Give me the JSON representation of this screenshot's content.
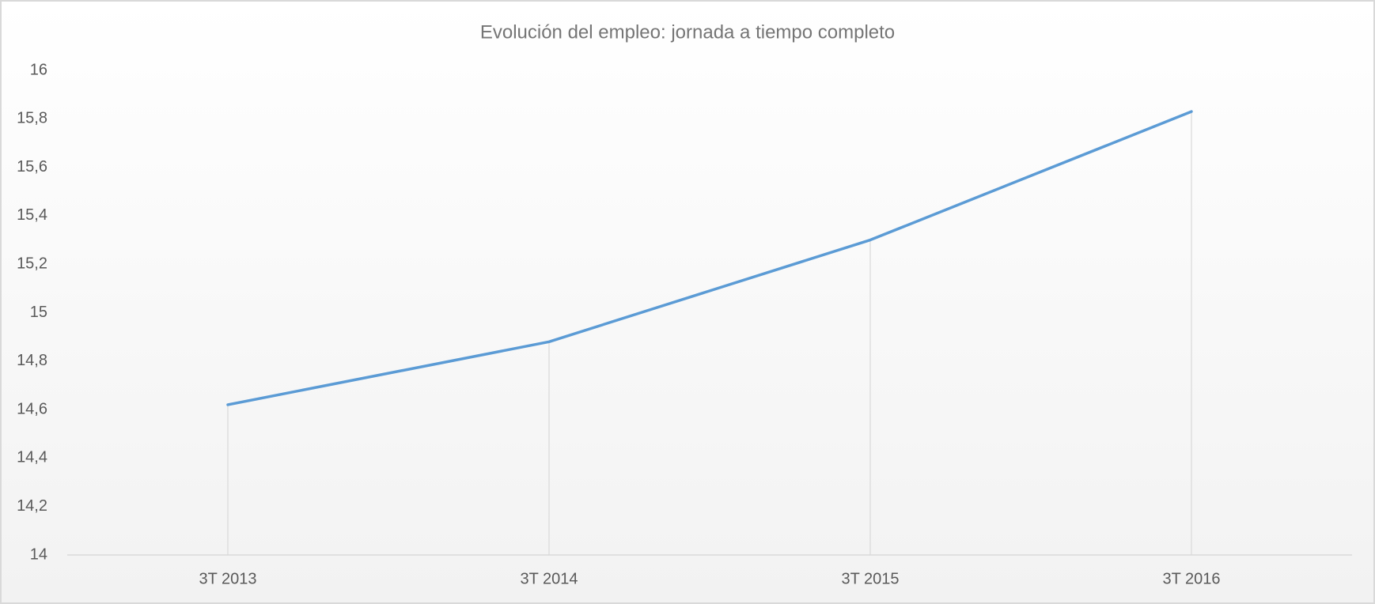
{
  "chart_data": {
    "type": "line",
    "title": "Evolución del empleo: jornada a tiempo completo",
    "categories": [
      "3T 2013",
      "3T 2014",
      "3T 2015",
      "3T 2016"
    ],
    "values": [
      14.62,
      14.88,
      15.3,
      15.83
    ],
    "color": "#5b9bd5",
    "ylim": [
      14,
      16
    ],
    "yticks": [
      14,
      {
        "value": 14.2,
        "label": "14,2"
      },
      {
        "value": 14.4,
        "label": "14,4"
      },
      {
        "value": 14.6,
        "label": "14,6"
      },
      {
        "value": 14.8,
        "label": "14,8"
      },
      15,
      {
        "value": 15.2,
        "label": "15,2"
      },
      {
        "value": 15.4,
        "label": "15,4"
      },
      {
        "value": 15.6,
        "label": "15,6"
      },
      {
        "value": 15.8,
        "label": "15,8"
      },
      16
    ],
    "grid": false,
    "drop_lines": true
  }
}
